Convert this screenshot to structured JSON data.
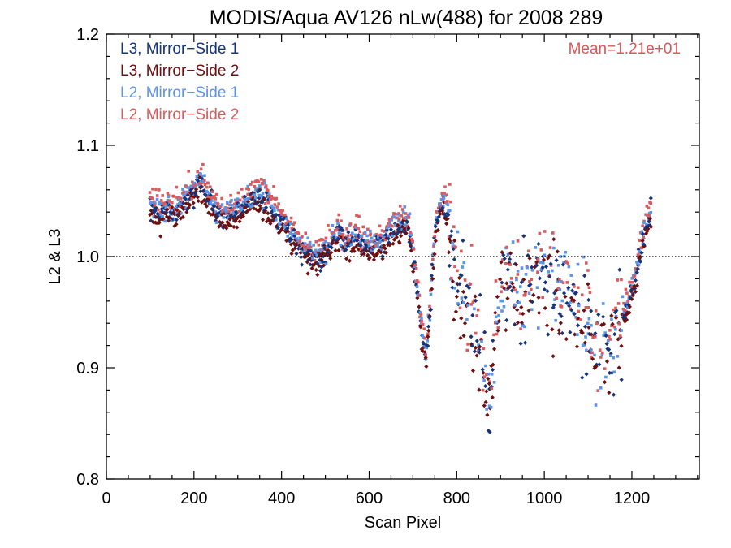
{
  "chart_data": {
    "type": "scatter",
    "title": "MODIS/Aqua AV126 nLw(488) for 2008 289",
    "xlabel": "Scan Pixel",
    "ylabel": "L2 & L3",
    "xlim": [
      0,
      1354
    ],
    "ylim": [
      0.8,
      1.2
    ],
    "xticks": [
      0,
      200,
      400,
      600,
      800,
      1000,
      1200
    ],
    "yticks": [
      0.8,
      0.9,
      1.0,
      1.1,
      1.2
    ],
    "xtick_labels": [
      "0",
      "200",
      "400",
      "600",
      "800",
      "1000",
      "1200"
    ],
    "ytick_labels": [
      "0.8",
      "0.9",
      "1.0",
      "1.1",
      "1.2"
    ],
    "reference_line": 1.0,
    "annotation": "Mean=1.21e+01",
    "annotation_color": "#d9575a",
    "legend_position": "top-left",
    "grid": false,
    "x_range_points": [
      100,
      1245
    ],
    "series": [
      {
        "name": "L3, Mirror−Side 1",
        "color": "#17357a",
        "marker": "diamond"
      },
      {
        "name": "L3, Mirror−Side 2",
        "color": "#6e0f10",
        "marker": "diamond"
      },
      {
        "name": "L2, Mirror−Side 1",
        "color": "#5b95e8",
        "marker": "square"
      },
      {
        "name": "L2, Mirror−Side 2",
        "color": "#d95b5e",
        "marker": "square"
      }
    ],
    "trend_x": [
      100,
      120,
      140,
      160,
      180,
      200,
      215,
      230,
      250,
      270,
      290,
      310,
      330,
      350,
      370,
      390,
      410,
      430,
      450,
      470,
      490,
      510,
      530,
      550,
      570,
      590,
      610,
      630,
      650,
      670,
      690,
      700,
      710,
      720,
      730,
      740,
      750,
      760,
      770,
      780,
      790,
      800,
      820,
      840,
      860,
      875,
      890,
      910,
      930,
      950,
      970,
      990,
      1010,
      1030,
      1050,
      1070,
      1090,
      1110,
      1130,
      1150,
      1170,
      1190,
      1210,
      1230,
      1245
    ],
    "trend_y": [
      1.045,
      1.038,
      1.042,
      1.04,
      1.05,
      1.058,
      1.068,
      1.055,
      1.04,
      1.033,
      1.038,
      1.045,
      1.05,
      1.055,
      1.048,
      1.035,
      1.025,
      1.015,
      1.005,
      1.0,
      0.998,
      1.01,
      1.02,
      1.012,
      1.018,
      1.01,
      1.006,
      1.012,
      1.02,
      1.03,
      1.028,
      1.0,
      0.97,
      0.935,
      0.905,
      0.96,
      1.02,
      1.04,
      1.05,
      1.04,
      1.0,
      0.975,
      0.96,
      0.945,
      0.9,
      0.87,
      0.95,
      0.985,
      0.97,
      0.96,
      0.975,
      0.985,
      0.975,
      0.97,
      0.965,
      0.96,
      0.945,
      0.925,
      0.91,
      0.925,
      0.935,
      0.955,
      0.985,
      1.025,
      1.04
    ]
  }
}
